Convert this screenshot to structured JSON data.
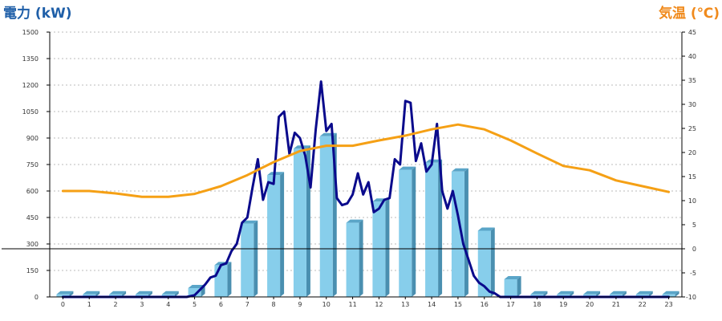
{
  "colors": {
    "left_title": "#1f5fa8",
    "right_title": "#f08a1c",
    "bar_front": "#87ceeb",
    "bar_side": "#4a8fb0",
    "bar_top": "#5aa5c8",
    "power_line": "#0a0a8c",
    "temp_line": "#f5a015",
    "grid": "#bbbbbb"
  },
  "chart_data": {
    "type": "bar",
    "title_left": "電力 (kW)",
    "title_right": "気温 (℃)",
    "categories": [
      "0",
      "1",
      "2",
      "3",
      "4",
      "5",
      "6",
      "7",
      "8",
      "9",
      "10",
      "11",
      "12",
      "13",
      "14",
      "15",
      "16",
      "17",
      "18",
      "19",
      "20",
      "21",
      "22",
      "23"
    ],
    "y_left": {
      "min": 0,
      "max": 1500,
      "ticks": [
        "0",
        "150",
        "300",
        "450",
        "600",
        "750",
        "900",
        "1050",
        "1200",
        "1350",
        "1500"
      ]
    },
    "y_right": {
      "min": -10,
      "max": 45,
      "ticks": [
        "-10",
        "-5",
        "0",
        "5",
        "10",
        "15",
        "20",
        "25",
        "30",
        "35",
        "40",
        "45"
      ]
    },
    "grid": true,
    "series": [
      {
        "kind": "bar",
        "axis": "left",
        "values": [
          15,
          15,
          15,
          15,
          15,
          50,
          180,
          415,
          690,
          840,
          910,
          420,
          540,
          720,
          760,
          710,
          375,
          100,
          15,
          15,
          15,
          15,
          15,
          15
        ]
      },
      {
        "kind": "line",
        "axis": "left",
        "x": [
          0,
          1,
          2,
          3,
          4,
          4.7,
          5,
          5.2,
          5.4,
          5.6,
          5.8,
          6.0,
          6.2,
          6.4,
          6.6,
          6.8,
          7.0,
          7.2,
          7.4,
          7.6,
          7.8,
          8.0,
          8.2,
          8.4,
          8.6,
          8.8,
          9.0,
          9.2,
          9.4,
          9.6,
          9.8,
          10.0,
          10.2,
          10.4,
          10.6,
          10.8,
          11.0,
          11.2,
          11.4,
          11.6,
          11.8,
          12.0,
          12.2,
          12.4,
          12.6,
          12.8,
          13.0,
          13.2,
          13.4,
          13.6,
          13.8,
          14.0,
          14.2,
          14.4,
          14.6,
          14.8,
          15.0,
          15.2,
          15.4,
          15.6,
          15.8,
          16.0,
          16.2,
          16.4,
          16.6,
          16.8,
          17.0,
          17.2,
          17.4,
          17.6,
          18,
          19,
          20,
          21,
          22,
          23
        ],
        "values": [
          0,
          0,
          0,
          0,
          0,
          0,
          10,
          40,
          70,
          110,
          120,
          180,
          190,
          260,
          300,
          420,
          450,
          620,
          780,
          550,
          650,
          640,
          1020,
          1050,
          810,
          930,
          900,
          800,
          620,
          950,
          1220,
          940,
          980,
          560,
          520,
          530,
          580,
          700,
          580,
          650,
          480,
          500,
          550,
          560,
          780,
          750,
          1110,
          1100,
          770,
          870,
          710,
          750,
          980,
          600,
          500,
          600,
          460,
          300,
          210,
          120,
          80,
          60,
          30,
          20,
          0,
          0,
          0,
          0,
          0,
          0,
          0,
          0,
          0,
          0,
          0,
          0
        ]
      },
      {
        "kind": "line",
        "axis": "right",
        "x": [
          0,
          1,
          2,
          3,
          4,
          5,
          6,
          7,
          8,
          9,
          10,
          11,
          12,
          13,
          14,
          15,
          16,
          17,
          18,
          19,
          20,
          21,
          22,
          23
        ],
        "values": [
          12,
          12,
          11.5,
          10.8,
          10.8,
          11.4,
          13.0,
          15.3,
          18.0,
          20.3,
          21.4,
          21.4,
          22.5,
          23.5,
          24.8,
          25.8,
          24.8,
          22.5,
          19.8,
          17.2,
          16.3,
          14.2,
          13.0,
          11.8
        ]
      }
    ]
  }
}
